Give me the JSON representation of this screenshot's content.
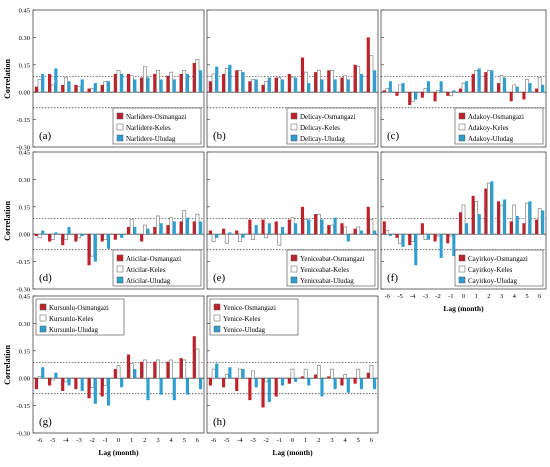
{
  "y_axis_title": "Correlation",
  "x_axis_title": "Lag (month)",
  "colors": {
    "osmangazi": "#c0202a",
    "keles": "#ffffff",
    "uludag": "#2e9fd0"
  },
  "chart_data": [
    {
      "type": "bar",
      "panel_label": "(a)",
      "categories": [
        "-6",
        "-5",
        "-4",
        "-3",
        "-2",
        "-1",
        "0",
        "1",
        "2",
        "3",
        "4",
        "5",
        "6"
      ],
      "ylim": [
        -0.3,
        0.45
      ],
      "yticks": [
        "0.45",
        "0.30",
        "0.15",
        "0.00",
        "-0.15",
        "-0.30"
      ],
      "xtick_labels": false,
      "threshold": 0.085,
      "legend_position": "bottom-right",
      "series": [
        {
          "name": "Narlidere-Osmangazi",
          "values": [
            0.03,
            0.1,
            0.04,
            0.04,
            0.02,
            0.04,
            0.1,
            0.1,
            0.08,
            0.1,
            0.09,
            0.1,
            0.16
          ]
        },
        {
          "name": "Narlidere-Keles",
          "values": [
            0.07,
            0.04,
            0.08,
            0.03,
            0.02,
            0.06,
            0.12,
            0.09,
            0.14,
            0.12,
            0.11,
            0.12,
            0.18
          ]
        },
        {
          "name": "Narlidere-Uludag",
          "values": [
            0.1,
            0.13,
            0.06,
            0.07,
            0.05,
            0.06,
            0.1,
            0.07,
            0.08,
            0.07,
            0.07,
            0.1,
            0.12
          ]
        }
      ]
    },
    {
      "type": "bar",
      "panel_label": "(b)",
      "categories": [
        "-6",
        "-5",
        "-4",
        "-3",
        "-2",
        "-1",
        "0",
        "1",
        "2",
        "3",
        "4",
        "5",
        "6"
      ],
      "ylim": [
        -0.3,
        0.45
      ],
      "yticks": [],
      "xtick_labels": false,
      "threshold": 0.085,
      "legend_position": "bottom-right",
      "series": [
        {
          "name": "Delicay-Osmangazi",
          "values": [
            0.06,
            0.1,
            0.12,
            0.06,
            0.04,
            0.08,
            0.1,
            0.19,
            0.11,
            0.12,
            0.08,
            0.15,
            0.3
          ]
        },
        {
          "name": "Delicay-Keles",
          "values": [
            0.1,
            0.13,
            0.12,
            0.07,
            0.06,
            0.08,
            0.08,
            0.11,
            0.12,
            0.12,
            0.09,
            0.14,
            0.2
          ]
        },
        {
          "name": "Delicay-Uludag",
          "values": [
            0.14,
            0.15,
            0.11,
            0.07,
            0.08,
            0.07,
            0.08,
            0.05,
            0.07,
            0.07,
            0.07,
            0.1,
            0.12
          ]
        }
      ]
    },
    {
      "type": "bar",
      "panel_label": "(c)",
      "categories": [
        "-6",
        "-5",
        "-4",
        "-3",
        "-2",
        "-1",
        "0",
        "1",
        "2",
        "3",
        "4",
        "5",
        "6"
      ],
      "ylim": [
        -0.3,
        0.45
      ],
      "yticks": [],
      "xtick_labels": false,
      "threshold": 0.085,
      "legend_position": "bottom-right",
      "series": [
        {
          "name": "Adakoy-Osmangazi",
          "values": [
            0.01,
            -0.02,
            -0.07,
            -0.03,
            -0.05,
            -0.02,
            0.02,
            0.1,
            0.11,
            0.05,
            -0.05,
            -0.04,
            0.02
          ]
        },
        {
          "name": "Adakoy-Keles",
          "values": [
            0.02,
            0.04,
            -0.05,
            0.02,
            0.01,
            -0.02,
            0.05,
            0.12,
            0.12,
            0.09,
            0.04,
            0.07,
            0.08
          ]
        },
        {
          "name": "Adakoy-Uludag",
          "values": [
            0.06,
            0.05,
            -0.04,
            0.06,
            0.06,
            0.01,
            0.06,
            0.13,
            0.12,
            0.08,
            0.03,
            0.05,
            0.04
          ]
        }
      ]
    },
    {
      "type": "bar",
      "panel_label": "(d)",
      "categories": [
        "-6",
        "-5",
        "-4",
        "-3",
        "-2",
        "-1",
        "0",
        "1",
        "2",
        "3",
        "4",
        "5",
        "6"
      ],
      "ylim": [
        -0.3,
        0.45
      ],
      "yticks": [
        "0.45",
        "0.30",
        "0.15",
        "0.00",
        "-0.15",
        "-0.30"
      ],
      "xtick_labels": false,
      "threshold": 0.085,
      "legend_position": "bottom-right",
      "series": [
        {
          "name": "Aticilar-Osmangazi",
          "values": [
            -0.01,
            -0.04,
            -0.06,
            -0.04,
            -0.17,
            -0.04,
            -0.03,
            0.04,
            -0.04,
            0.04,
            0.05,
            0.07,
            0.07
          ]
        },
        {
          "name": "Aticilar-Keles",
          "values": [
            -0.02,
            -0.03,
            -0.03,
            -0.02,
            -0.12,
            -0.03,
            0.0,
            0.08,
            0.05,
            0.1,
            0.09,
            0.13,
            0.11
          ]
        },
        {
          "name": "Aticilar-Uludag",
          "values": [
            0.02,
            0.01,
            0.04,
            -0.01,
            -0.15,
            -0.08,
            -0.02,
            0.04,
            0.03,
            0.06,
            0.07,
            0.09,
            0.07
          ]
        }
      ]
    },
    {
      "type": "bar",
      "panel_label": "(e)",
      "categories": [
        "-6",
        "-5",
        "-4",
        "-3",
        "-2",
        "-1",
        "0",
        "1",
        "2",
        "3",
        "4",
        "5",
        "6"
      ],
      "ylim": [
        -0.3,
        0.45
      ],
      "yticks": [],
      "xtick_labels": false,
      "threshold": 0.085,
      "legend_position": "bottom-right",
      "series": [
        {
          "name": "Yeniceabat-Osmangazi",
          "values": [
            0.02,
            0.03,
            0.02,
            0.08,
            0.08,
            0.07,
            0.08,
            0.15,
            0.11,
            0.05,
            0.06,
            0.03,
            0.15
          ]
        },
        {
          "name": "Yeniceabat-Keles",
          "values": [
            -0.04,
            -0.05,
            -0.04,
            -0.03,
            -0.02,
            -0.06,
            0.09,
            0.08,
            0.11,
            0.05,
            0.04,
            0.04,
            0.08
          ]
        },
        {
          "name": "Yeniceabat-Uludag",
          "values": [
            -0.02,
            0.01,
            -0.02,
            0.05,
            0.06,
            0.04,
            0.06,
            0.08,
            0.08,
            0.09,
            -0.04,
            0.02,
            0.02
          ]
        }
      ]
    },
    {
      "type": "bar",
      "panel_label": "(f)",
      "categories": [
        "-6",
        "-5",
        "-4",
        "-3",
        "-2",
        "-1",
        "0",
        "1",
        "2",
        "3",
        "4",
        "5",
        "6"
      ],
      "ylim": [
        -0.3,
        0.45
      ],
      "yticks": [],
      "xtick_labels": true,
      "threshold": 0.085,
      "legend_position": "bottom-right",
      "series": [
        {
          "name": "Cayirkoy-Osmangazi",
          "values": [
            0.07,
            -0.02,
            -0.06,
            0.06,
            -0.04,
            -0.05,
            0.12,
            0.21,
            0.25,
            0.18,
            0.07,
            0.06,
            0.08
          ]
        },
        {
          "name": "Cayirkoy-Keles",
          "values": [
            0.02,
            -0.05,
            -0.04,
            -0.03,
            -0.01,
            -0.01,
            0.16,
            0.18,
            0.28,
            0.16,
            0.16,
            0.17,
            0.14
          ]
        },
        {
          "name": "Cayirkoy-Uludag",
          "values": [
            -0.01,
            -0.07,
            -0.17,
            -0.03,
            -0.13,
            -0.12,
            0.06,
            0.11,
            0.29,
            0.19,
            0.1,
            0.18,
            0.13
          ]
        }
      ]
    },
    {
      "type": "bar",
      "panel_label": "(g)",
      "categories": [
        "-6",
        "-5",
        "-4",
        "-3",
        "-2",
        "-1",
        "0",
        "1",
        "2",
        "3",
        "4",
        "5",
        "6"
      ],
      "ylim": [
        -0.3,
        0.45
      ],
      "yticks": [
        "0.45",
        "0.30",
        "0.15",
        "0.00",
        "-0.15",
        "-0.30"
      ],
      "xtick_labels": true,
      "threshold": 0.085,
      "legend_position": "top-left",
      "series": [
        {
          "name": "Kursunlu-Osmangazi",
          "values": [
            -0.06,
            -0.04,
            -0.07,
            -0.06,
            -0.11,
            -0.1,
            0.05,
            0.13,
            0.09,
            0.09,
            0.09,
            0.11,
            0.23
          ]
        },
        {
          "name": "Kursunlu-Keles",
          "values": [
            0.01,
            -0.01,
            -0.02,
            0.0,
            -0.05,
            -0.04,
            0.07,
            0.08,
            0.1,
            0.1,
            0.1,
            0.1,
            0.16
          ]
        },
        {
          "name": "Kursunlu-Uludag",
          "values": [
            0.06,
            0.03,
            -0.04,
            -0.07,
            -0.14,
            -0.15,
            -0.05,
            0.05,
            -0.12,
            -0.09,
            -0.12,
            -0.09,
            -0.06
          ]
        }
      ]
    },
    {
      "type": "bar",
      "panel_label": "(h)",
      "categories": [
        "-6",
        "-5",
        "-4",
        "-3",
        "-2",
        "-1",
        "0",
        "1",
        "2",
        "3",
        "4",
        "5",
        "6"
      ],
      "ylim": [
        -0.3,
        0.45
      ],
      "yticks": [],
      "xtick_labels": true,
      "threshold": 0.085,
      "legend_position": "top-left",
      "series": [
        {
          "name": "Yenice-Osmangazi",
          "values": [
            -0.04,
            -0.05,
            -0.07,
            -0.12,
            -0.16,
            -0.1,
            -0.03,
            0.01,
            0.02,
            0.01,
            -0.04,
            -0.03,
            0.03
          ]
        },
        {
          "name": "Yenice-Keles",
          "values": [
            0.05,
            0.02,
            0.05,
            0.04,
            -0.02,
            0.0,
            0.05,
            0.05,
            0.07,
            0.05,
            0.02,
            0.05,
            0.07
          ]
        },
        {
          "name": "Yenice-Uludag",
          "values": [
            0.08,
            0.06,
            0.05,
            -0.05,
            -0.13,
            -0.04,
            -0.02,
            -0.04,
            -0.1,
            -0.06,
            -0.08,
            -0.06,
            -0.06
          ]
        }
      ]
    }
  ]
}
